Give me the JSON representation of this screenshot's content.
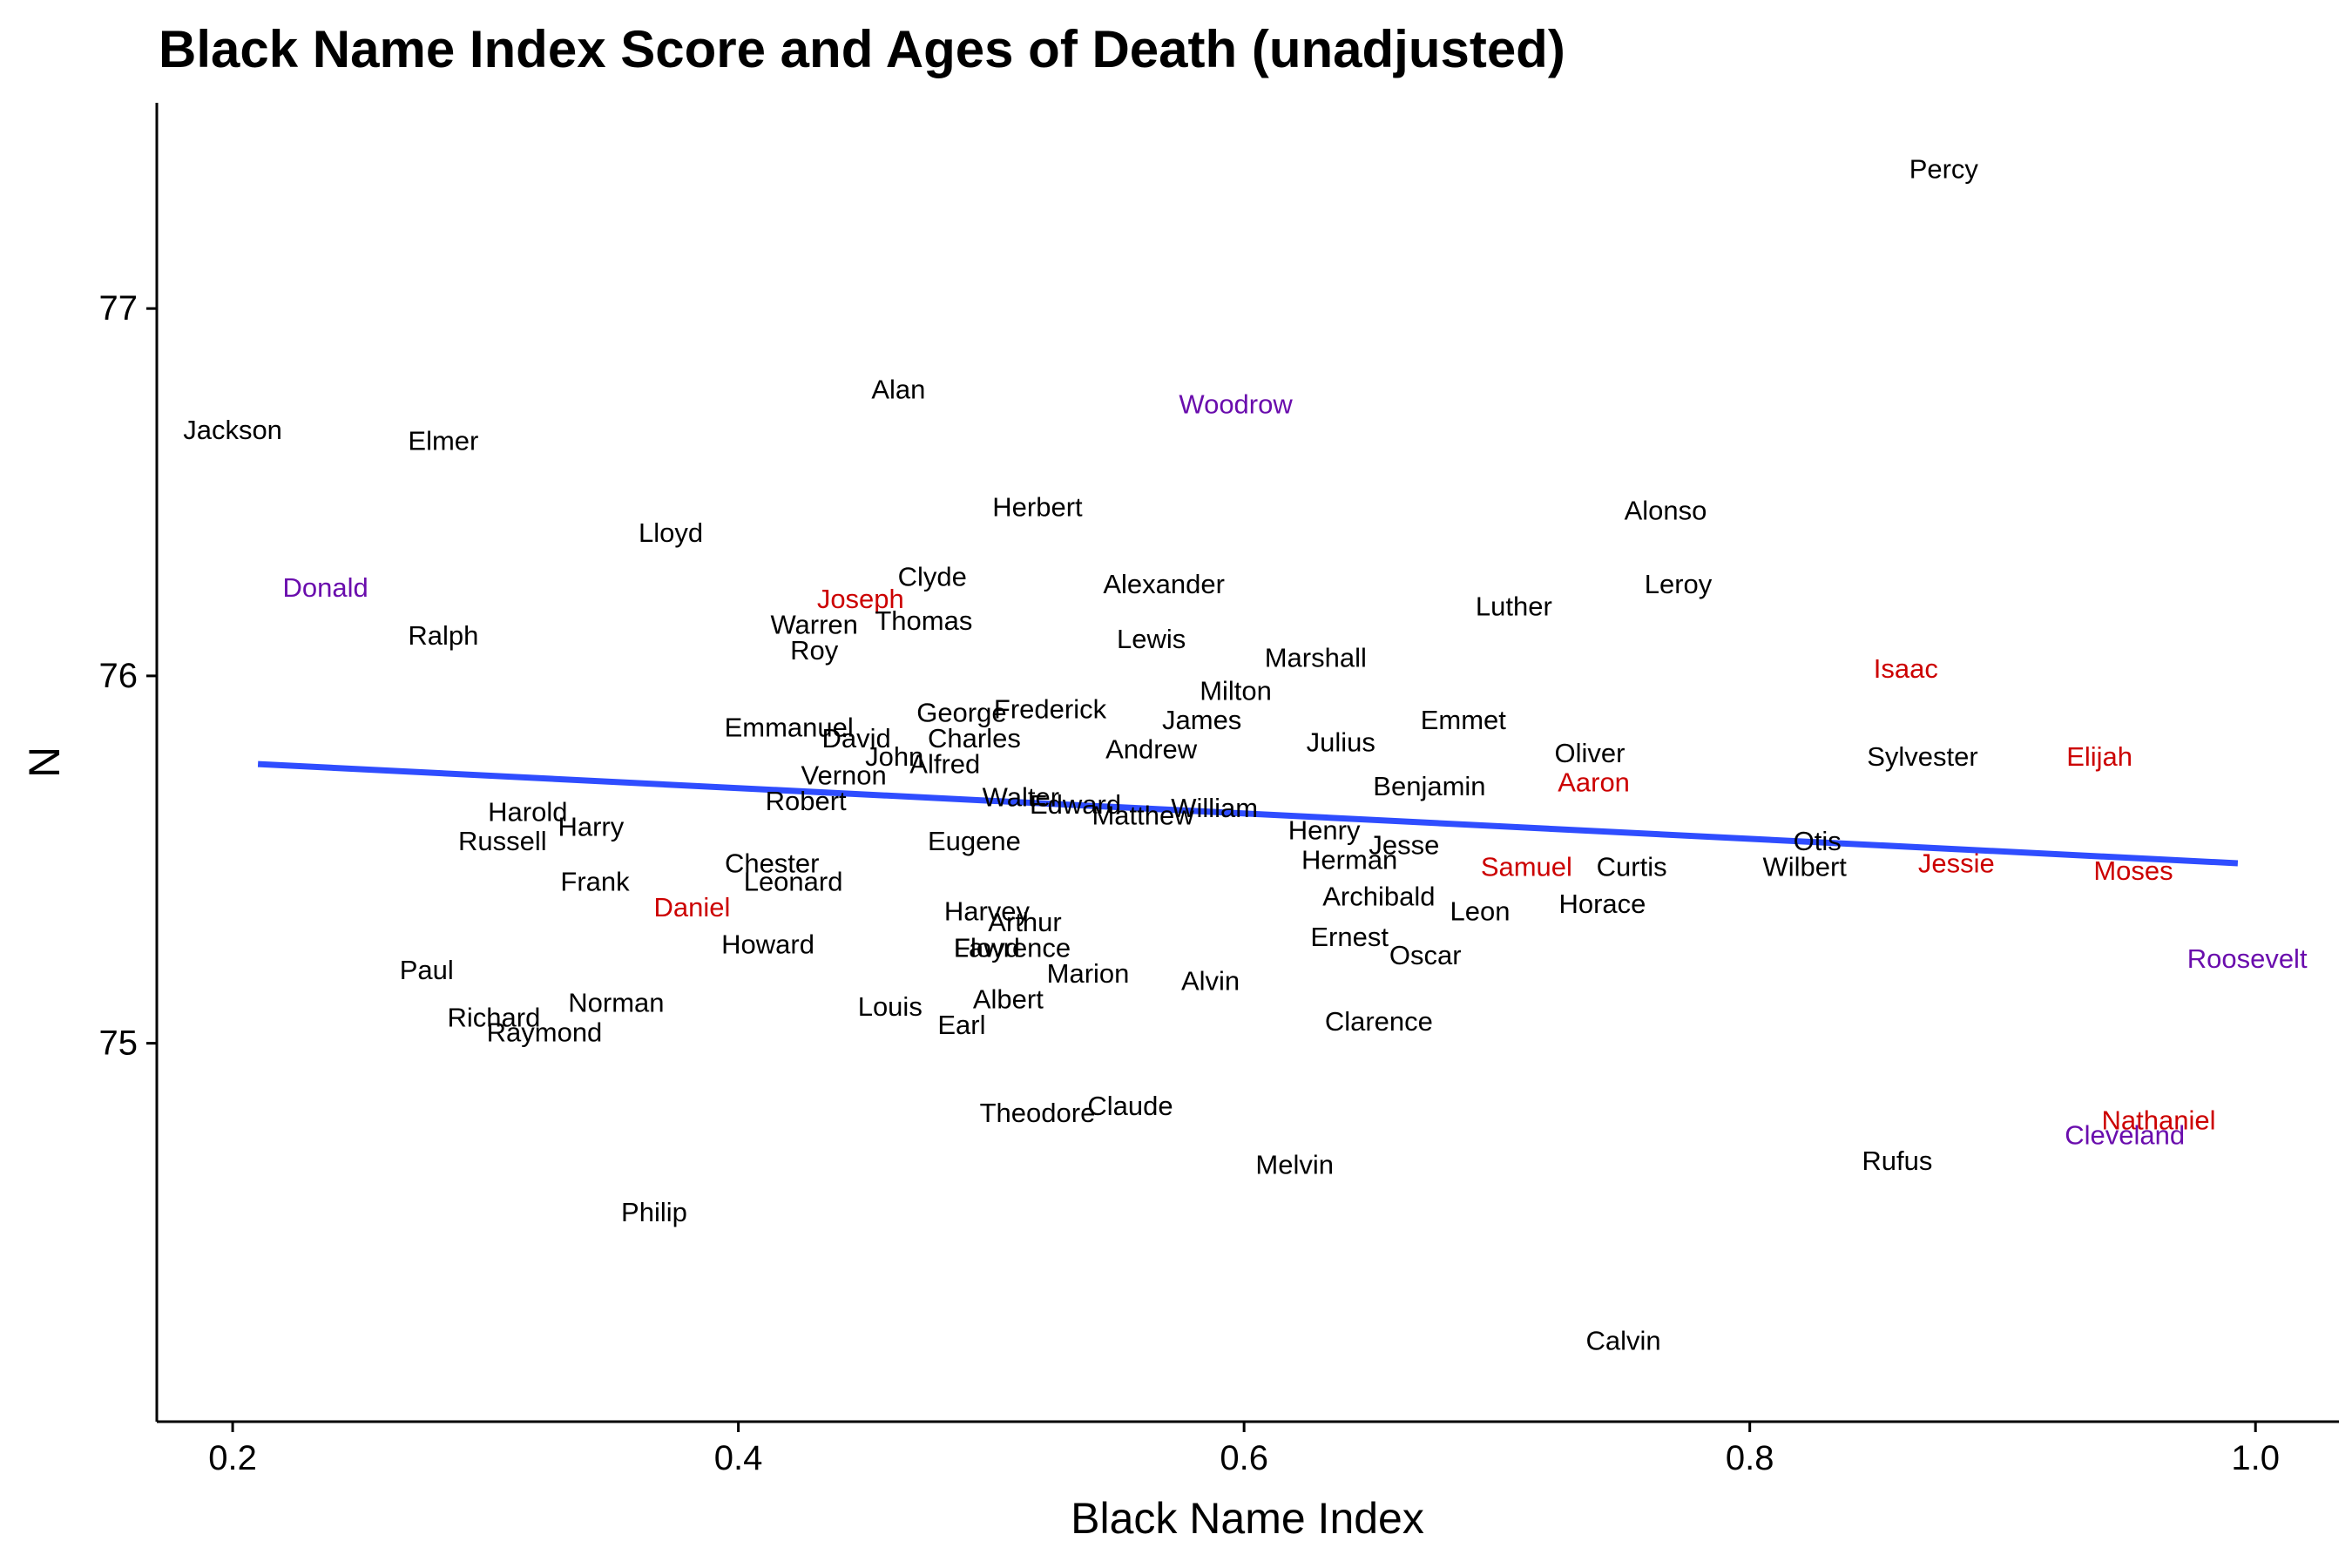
{
  "chart_data": {
    "type": "scatter",
    "title": "Black Name Index Score and Ages of Death (unadjusted)",
    "xlabel": "Black Name Index",
    "ylabel": "N",
    "xlim": [
      0.17,
      1.033
    ],
    "ylim": [
      73.97,
      77.56
    ],
    "xticks": [
      0.2,
      0.4,
      0.6,
      0.8,
      1.0
    ],
    "xtick_labels": [
      "0.2",
      "0.4",
      "0.6",
      "0.8",
      "1.0"
    ],
    "yticks": [
      75,
      76,
      77
    ],
    "ytick_labels": [
      "75",
      "76",
      "77"
    ],
    "grid": false,
    "legend": "none",
    "colors": {
      "default": "#000000",
      "red": "#cc0000",
      "purple": "#6a0dad",
      "trend": "#2f4dff"
    },
    "trend_line": {
      "x": [
        0.21,
        0.993
      ],
      "y": [
        75.76,
        75.49
      ]
    },
    "points": [
      {
        "name": "Percy",
        "x": 0.8767,
        "y": 77.38,
        "color": "default"
      },
      {
        "name": "Alan",
        "x": 0.4633,
        "y": 76.78,
        "color": "default"
      },
      {
        "name": "Woodrow",
        "x": 0.5967,
        "y": 76.74,
        "color": "purple"
      },
      {
        "name": "Jackson",
        "x": 0.2,
        "y": 76.67,
        "color": "default"
      },
      {
        "name": "Elmer",
        "x": 0.2833,
        "y": 76.64,
        "color": "default"
      },
      {
        "name": "Herbert",
        "x": 0.5183,
        "y": 76.46,
        "color": "default"
      },
      {
        "name": "Alonso",
        "x": 0.7667,
        "y": 76.45,
        "color": "default"
      },
      {
        "name": "Lloyd",
        "x": 0.3733,
        "y": 76.39,
        "color": "default"
      },
      {
        "name": "Clyde",
        "x": 0.4767,
        "y": 76.27,
        "color": "default"
      },
      {
        "name": "Alexander",
        "x": 0.5683,
        "y": 76.25,
        "color": "default"
      },
      {
        "name": "Leroy",
        "x": 0.7717,
        "y": 76.25,
        "color": "default"
      },
      {
        "name": "Donald",
        "x": 0.2367,
        "y": 76.24,
        "color": "purple"
      },
      {
        "name": "Joseph",
        "x": 0.4483,
        "y": 76.21,
        "color": "red"
      },
      {
        "name": "Luther",
        "x": 0.7067,
        "y": 76.19,
        "color": "default"
      },
      {
        "name": "Thomas",
        "x": 0.4733,
        "y": 76.15,
        "color": "default"
      },
      {
        "name": "Warren",
        "x": 0.43,
        "y": 76.14,
        "color": "default"
      },
      {
        "name": "Ralph",
        "x": 0.2833,
        "y": 76.11,
        "color": "default"
      },
      {
        "name": "Lewis",
        "x": 0.5633,
        "y": 76.1,
        "color": "default"
      },
      {
        "name": "Roy",
        "x": 0.43,
        "y": 76.07,
        "color": "default"
      },
      {
        "name": "Marshall",
        "x": 0.6283,
        "y": 76.05,
        "color": "default"
      },
      {
        "name": "Isaac",
        "x": 0.8617,
        "y": 76.02,
        "color": "red"
      },
      {
        "name": "Milton",
        "x": 0.5967,
        "y": 75.96,
        "color": "default"
      },
      {
        "name": "Frederick",
        "x": 0.5233,
        "y": 75.91,
        "color": "default"
      },
      {
        "name": "George",
        "x": 0.4883,
        "y": 75.9,
        "color": "default"
      },
      {
        "name": "James",
        "x": 0.5833,
        "y": 75.88,
        "color": "default"
      },
      {
        "name": "Emmet",
        "x": 0.6867,
        "y": 75.88,
        "color": "default"
      },
      {
        "name": "Emmanuel",
        "x": 0.42,
        "y": 75.86,
        "color": "default"
      },
      {
        "name": "Charles",
        "x": 0.4933,
        "y": 75.83,
        "color": "default"
      },
      {
        "name": "David",
        "x": 0.4467,
        "y": 75.83,
        "color": "default"
      },
      {
        "name": "Julius",
        "x": 0.6383,
        "y": 75.82,
        "color": "default"
      },
      {
        "name": "Andrew",
        "x": 0.5633,
        "y": 75.8,
        "color": "default"
      },
      {
        "name": "Oliver",
        "x": 0.7367,
        "y": 75.79,
        "color": "default"
      },
      {
        "name": "Sylvester",
        "x": 0.8683,
        "y": 75.78,
        "color": "default"
      },
      {
        "name": "Elijah",
        "x": 0.9383,
        "y": 75.78,
        "color": "red"
      },
      {
        "name": "John",
        "x": 0.4617,
        "y": 75.78,
        "color": "default"
      },
      {
        "name": "Alfred",
        "x": 0.4817,
        "y": 75.76,
        "color": "default"
      },
      {
        "name": "Vernon",
        "x": 0.4417,
        "y": 75.73,
        "color": "default"
      },
      {
        "name": "Aaron",
        "x": 0.7383,
        "y": 75.71,
        "color": "red"
      },
      {
        "name": "Benjamin",
        "x": 0.6733,
        "y": 75.7,
        "color": "default"
      },
      {
        "name": "Walter",
        "x": 0.5117,
        "y": 75.67,
        "color": "default"
      },
      {
        "name": "Robert",
        "x": 0.4267,
        "y": 75.66,
        "color": "default"
      },
      {
        "name": "Edward",
        "x": 0.5333,
        "y": 75.65,
        "color": "default"
      },
      {
        "name": "William",
        "x": 0.5883,
        "y": 75.64,
        "color": "default"
      },
      {
        "name": "Harold",
        "x": 0.3167,
        "y": 75.63,
        "color": "default"
      },
      {
        "name": "Matthew",
        "x": 0.56,
        "y": 75.62,
        "color": "default"
      },
      {
        "name": "Harry",
        "x": 0.3417,
        "y": 75.59,
        "color": "default"
      },
      {
        "name": "Henry",
        "x": 0.6317,
        "y": 75.58,
        "color": "default"
      },
      {
        "name": "Otis",
        "x": 0.8267,
        "y": 75.55,
        "color": "default"
      },
      {
        "name": "Russell",
        "x": 0.3067,
        "y": 75.55,
        "color": "default"
      },
      {
        "name": "Eugene",
        "x": 0.4933,
        "y": 75.55,
        "color": "default"
      },
      {
        "name": "Jesse",
        "x": 0.6633,
        "y": 75.54,
        "color": "default"
      },
      {
        "name": "Herman",
        "x": 0.6417,
        "y": 75.5,
        "color": "default"
      },
      {
        "name": "Chester",
        "x": 0.4133,
        "y": 75.49,
        "color": "default"
      },
      {
        "name": "Jessie",
        "x": 0.8817,
        "y": 75.49,
        "color": "red"
      },
      {
        "name": "Curtis",
        "x": 0.7533,
        "y": 75.48,
        "color": "default"
      },
      {
        "name": "Samuel",
        "x": 0.7117,
        "y": 75.48,
        "color": "red"
      },
      {
        "name": "Wilbert",
        "x": 0.8217,
        "y": 75.48,
        "color": "default"
      },
      {
        "name": "Moses",
        "x": 0.9517,
        "y": 75.47,
        "color": "red"
      },
      {
        "name": "Frank",
        "x": 0.3433,
        "y": 75.44,
        "color": "default"
      },
      {
        "name": "Leonard",
        "x": 0.4217,
        "y": 75.44,
        "color": "default"
      },
      {
        "name": "Archibald",
        "x": 0.6533,
        "y": 75.4,
        "color": "default"
      },
      {
        "name": "Horace",
        "x": 0.7417,
        "y": 75.38,
        "color": "default"
      },
      {
        "name": "Daniel",
        "x": 0.3817,
        "y": 75.37,
        "color": "red"
      },
      {
        "name": "Harvey",
        "x": 0.4983,
        "y": 75.36,
        "color": "default"
      },
      {
        "name": "Leon",
        "x": 0.6933,
        "y": 75.36,
        "color": "default"
      },
      {
        "name": "Arthur",
        "x": 0.5133,
        "y": 75.33,
        "color": "default"
      },
      {
        "name": "Ernest",
        "x": 0.6417,
        "y": 75.29,
        "color": "default"
      },
      {
        "name": "Howard",
        "x": 0.4117,
        "y": 75.27,
        "color": "default"
      },
      {
        "name": "Floyd",
        "x": 0.4983,
        "y": 75.26,
        "color": "default"
      },
      {
        "name": "Lawrence",
        "x": 0.5083,
        "y": 75.26,
        "color": "default"
      },
      {
        "name": "Oscar",
        "x": 0.6717,
        "y": 75.24,
        "color": "default"
      },
      {
        "name": "Roosevelt",
        "x": 0.9967,
        "y": 75.23,
        "color": "purple"
      },
      {
        "name": "Paul",
        "x": 0.2767,
        "y": 75.2,
        "color": "default"
      },
      {
        "name": "Marion",
        "x": 0.5383,
        "y": 75.19,
        "color": "default"
      },
      {
        "name": "Alvin",
        "x": 0.5867,
        "y": 75.17,
        "color": "default"
      },
      {
        "name": "Albert",
        "x": 0.5067,
        "y": 75.12,
        "color": "default"
      },
      {
        "name": "Norman",
        "x": 0.3517,
        "y": 75.11,
        "color": "default"
      },
      {
        "name": "Louis",
        "x": 0.46,
        "y": 75.1,
        "color": "default"
      },
      {
        "name": "Richard",
        "x": 0.3033,
        "y": 75.07,
        "color": "default"
      },
      {
        "name": "Clarence",
        "x": 0.6533,
        "y": 75.06,
        "color": "default"
      },
      {
        "name": "Earl",
        "x": 0.4883,
        "y": 75.05,
        "color": "default"
      },
      {
        "name": "Raymond",
        "x": 0.3233,
        "y": 75.03,
        "color": "default"
      },
      {
        "name": "Claude",
        "x": 0.555,
        "y": 74.83,
        "color": "default"
      },
      {
        "name": "Theodore",
        "x": 0.5183,
        "y": 74.81,
        "color": "default"
      },
      {
        "name": "Nathaniel",
        "x": 0.9617,
        "y": 74.79,
        "color": "red"
      },
      {
        "name": "Cleveland",
        "x": 0.9483,
        "y": 74.75,
        "color": "purple"
      },
      {
        "name": "Rufus",
        "x": 0.8583,
        "y": 74.68,
        "color": "default"
      },
      {
        "name": "Melvin",
        "x": 0.62,
        "y": 74.67,
        "color": "default"
      },
      {
        "name": "Philip",
        "x": 0.3667,
        "y": 74.54,
        "color": "default"
      },
      {
        "name": "Calvin",
        "x": 0.75,
        "y": 74.19,
        "color": "default"
      }
    ]
  }
}
